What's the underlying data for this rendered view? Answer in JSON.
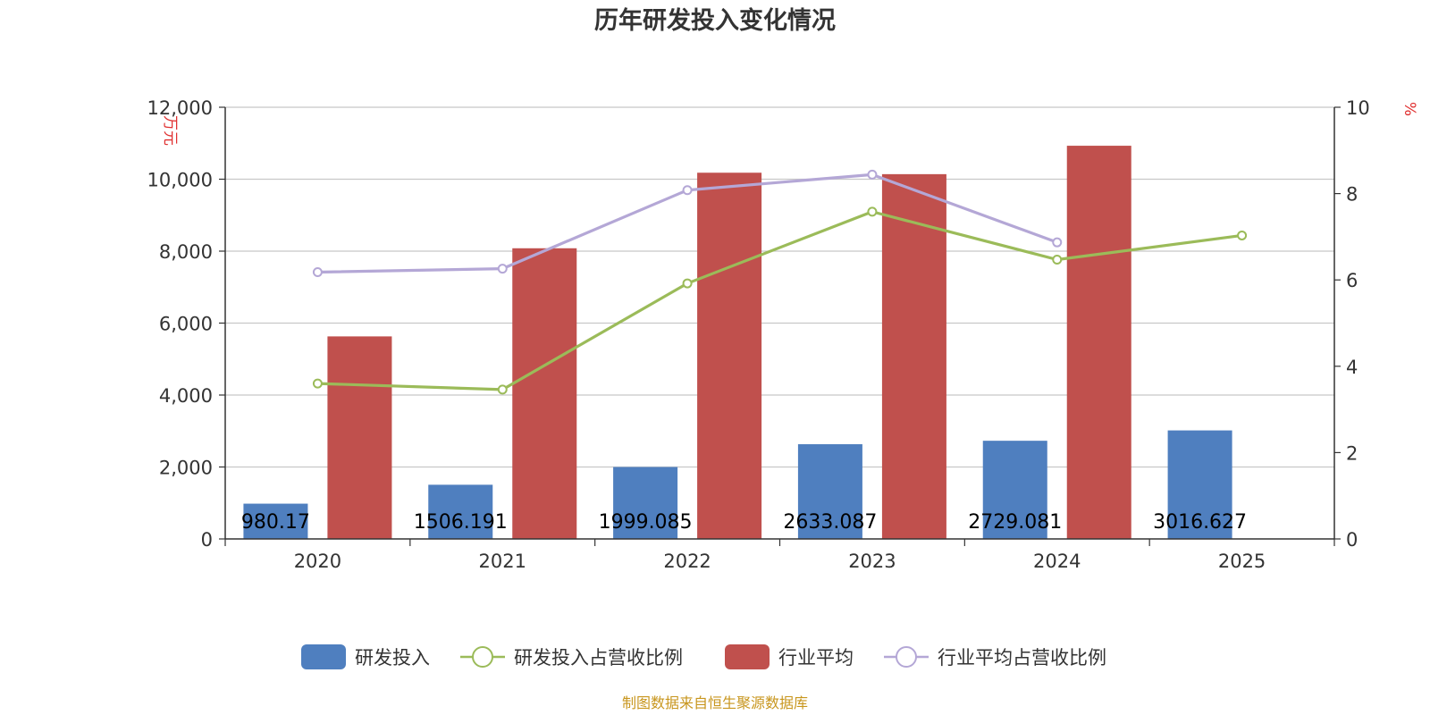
{
  "chart_data": {
    "type": "bar",
    "title": "历年研发投入变化情况",
    "categories": [
      "2020",
      "2021",
      "2022",
      "2023",
      "2024",
      "2025"
    ],
    "y_left": {
      "unit": "万元",
      "range": [
        0,
        12000
      ],
      "ticks": [
        "0",
        "2,000",
        "4,000",
        "6,000",
        "8,000",
        "10,000",
        "12,000"
      ]
    },
    "y_right": {
      "unit": "%",
      "range": [
        0,
        10
      ],
      "ticks": [
        "0",
        "2",
        "4",
        "6",
        "8",
        "10"
      ]
    },
    "grid": true,
    "legend_position": "bottom",
    "series": [
      {
        "name": "研发投入",
        "kind": "bar",
        "axis": "left",
        "color": "#4f7fbf",
        "values": [
          980.17,
          1506.191,
          1999.085,
          2633.087,
          2729.081,
          3016.627
        ],
        "data_labels": [
          "980.17",
          "1506.191",
          "1999.085",
          "2633.087",
          "2729.081",
          "3016.627"
        ]
      },
      {
        "name": "研发投入占营收比例",
        "kind": "line",
        "axis": "right",
        "color": "#9bbb59",
        "values": [
          3.6,
          3.46,
          5.92,
          7.58,
          6.47,
          7.03
        ]
      },
      {
        "name": "行业平均",
        "kind": "bar",
        "axis": "left",
        "color": "#c0504d",
        "values": [
          5630,
          8080,
          10180,
          10140,
          10930,
          null
        ]
      },
      {
        "name": "行业平均占营收比例",
        "kind": "line",
        "axis": "right",
        "color": "#b4a7d6",
        "values": [
          6.18,
          6.26,
          8.08,
          8.44,
          6.87,
          null
        ]
      }
    ],
    "source": "制图数据来自恒生聚源数据库"
  }
}
